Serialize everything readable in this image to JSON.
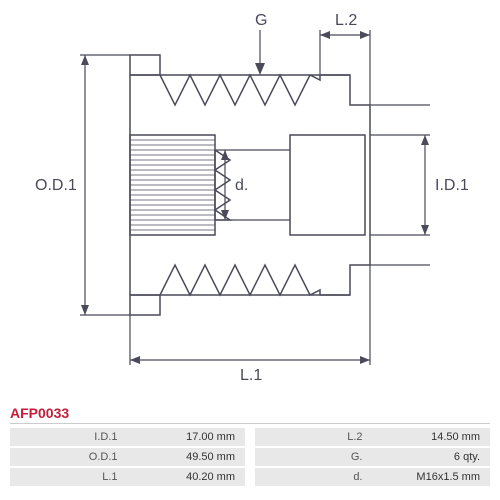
{
  "diagram": {
    "labels": {
      "od1": "O.D.1",
      "id1": "I.D.1",
      "l1": "L.1",
      "l2": "L.2",
      "g": "G",
      "d": "d."
    },
    "colors": {
      "line": "#4a4a5a",
      "bg": "#ffffff",
      "accent": "#c41e3a",
      "table_row": "#e8e8e8"
    }
  },
  "part_number": "AFP0033",
  "specs_left": [
    {
      "label": "I.D.1",
      "value": "17.00 mm"
    },
    {
      "label": "O.D.1",
      "value": "49.50 mm"
    },
    {
      "label": "L.1",
      "value": "40.20 mm"
    }
  ],
  "specs_right": [
    {
      "label": "L.2",
      "value": "14.50 mm"
    },
    {
      "label": "G.",
      "value": "6 qty."
    },
    {
      "label": "d.",
      "value": "M16x1.5 mm"
    }
  ]
}
